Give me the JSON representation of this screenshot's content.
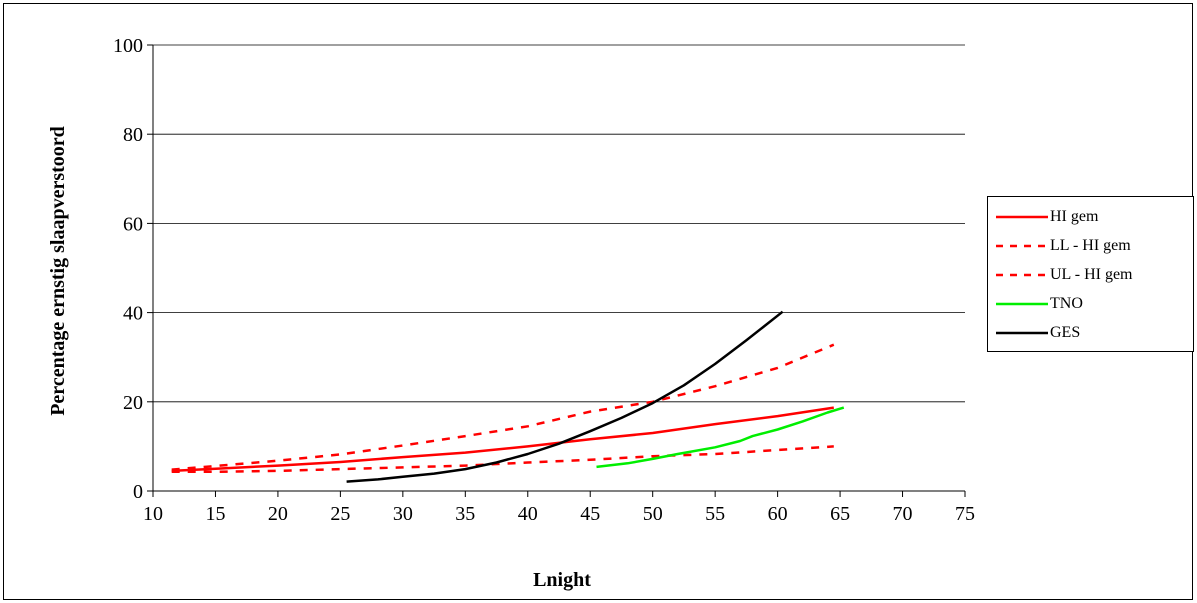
{
  "chart_data": {
    "type": "line",
    "xlabel": "Lnight",
    "ylabel": "Percentage ernstig slaapverstoord",
    "xlim": [
      10,
      75
    ],
    "ylim": [
      0,
      100
    ],
    "x_ticks": [
      10,
      15,
      20,
      25,
      30,
      35,
      40,
      45,
      50,
      55,
      60,
      65,
      70,
      75
    ],
    "y_ticks": [
      0,
      20,
      40,
      60,
      80,
      100
    ],
    "grid": "horizontal",
    "legend_position": "right",
    "series": [
      {
        "name": "HI gem",
        "color": "#ff0000",
        "style": "solid",
        "points": [
          [
            11.5,
            4.5
          ],
          [
            15,
            5
          ],
          [
            20,
            5.7
          ],
          [
            25,
            6.5
          ],
          [
            30,
            7.6
          ],
          [
            35,
            8.6
          ],
          [
            40,
            10
          ],
          [
            45,
            11.6
          ],
          [
            50,
            13
          ],
          [
            55,
            15
          ],
          [
            60,
            16.8
          ],
          [
            64.5,
            18.7
          ]
        ]
      },
      {
        "name": "LL - HI gem",
        "color": "#ff0000",
        "style": "dashed",
        "points": [
          [
            11.5,
            4.3
          ],
          [
            15,
            4.3
          ],
          [
            20,
            4.5
          ],
          [
            25,
            4.9
          ],
          [
            30,
            5.3
          ],
          [
            35,
            5.7
          ],
          [
            40,
            6.4
          ],
          [
            45,
            7
          ],
          [
            50,
            7.8
          ],
          [
            55,
            8.3
          ],
          [
            60,
            9.2
          ],
          [
            64.5,
            10
          ]
        ]
      },
      {
        "name": "UL - HI gem",
        "color": "#ff0000",
        "style": "dashed",
        "points": [
          [
            11.5,
            4.8
          ],
          [
            15,
            5.6
          ],
          [
            20,
            6.8
          ],
          [
            25,
            8.2
          ],
          [
            30,
            10.2
          ],
          [
            35,
            12.3
          ],
          [
            40,
            14.5
          ],
          [
            45,
            17.8
          ],
          [
            50,
            20
          ],
          [
            55,
            23.5
          ],
          [
            60,
            27.6
          ],
          [
            64.5,
            32.8
          ]
        ]
      },
      {
        "name": "TNO",
        "color": "#00ee00",
        "style": "solid",
        "points": [
          [
            45.5,
            5.4
          ],
          [
            48,
            6.2
          ],
          [
            50,
            7.2
          ],
          [
            52,
            8.3
          ],
          [
            55,
            9.8
          ],
          [
            57,
            11.2
          ],
          [
            58,
            12.3
          ],
          [
            60,
            13.8
          ],
          [
            62,
            15.6
          ],
          [
            64,
            17.6
          ],
          [
            65.3,
            18.7
          ]
        ]
      },
      {
        "name": "GES",
        "color": "#000000",
        "style": "solid",
        "points": [
          [
            25.5,
            2.1
          ],
          [
            28,
            2.6
          ],
          [
            30,
            3.2
          ],
          [
            32.5,
            3.9
          ],
          [
            35,
            4.9
          ],
          [
            37.5,
            6.4
          ],
          [
            40,
            8.3
          ],
          [
            42.5,
            10.6
          ],
          [
            45,
            13.4
          ],
          [
            47.5,
            16.4
          ],
          [
            50,
            19.7
          ],
          [
            52.5,
            23.7
          ],
          [
            55,
            28.5
          ],
          [
            57.5,
            33.8
          ],
          [
            60,
            39.3
          ],
          [
            60.4,
            40.2
          ]
        ]
      }
    ]
  }
}
